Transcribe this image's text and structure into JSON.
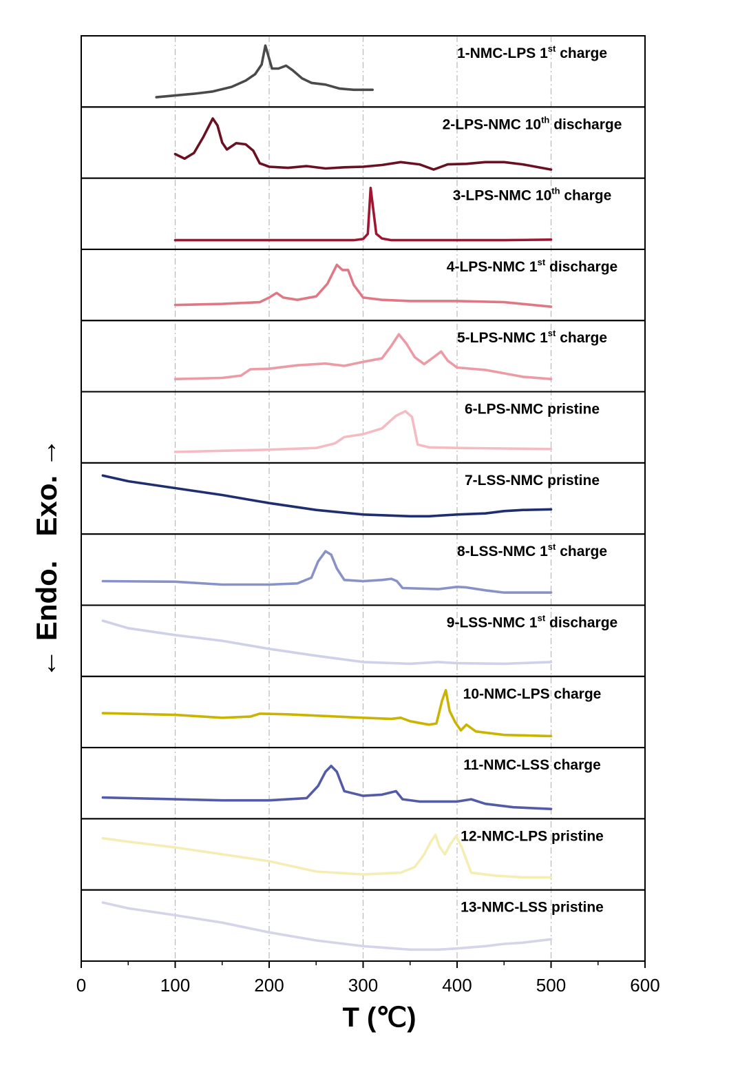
{
  "chart_data": {
    "type": "line",
    "title": "",
    "xlabel": "T (℃)",
    "ylabel": "← Endo.   Exo. →",
    "xlim": [
      0,
      600
    ],
    "xticks": [
      0,
      100,
      200,
      300,
      400,
      500,
      600
    ],
    "grid_x": [
      100,
      200,
      300,
      400,
      500
    ],
    "series": [
      {
        "name": "1-NMC-LPS 1st charge",
        "base": "1-NMC-LPS 1",
        "sup": "st",
        "suffix": " charge",
        "color": "#4a4a4a",
        "points": [
          [
            80,
            0.05
          ],
          [
            100,
            0.08
          ],
          [
            120,
            0.11
          ],
          [
            140,
            0.15
          ],
          [
            160,
            0.23
          ],
          [
            175,
            0.34
          ],
          [
            185,
            0.45
          ],
          [
            192,
            0.62
          ],
          [
            196,
            0.95
          ],
          [
            199,
            0.78
          ],
          [
            203,
            0.55
          ],
          [
            210,
            0.55
          ],
          [
            218,
            0.6
          ],
          [
            225,
            0.52
          ],
          [
            235,
            0.38
          ],
          [
            245,
            0.3
          ],
          [
            260,
            0.27
          ],
          [
            275,
            0.2
          ],
          [
            290,
            0.18
          ],
          [
            300,
            0.18
          ],
          [
            310,
            0.18
          ]
        ]
      },
      {
        "name": "2-LPS-NMC 10th discharge",
        "base": "2-LPS-NMC 10",
        "sup": "th",
        "suffix": " discharge",
        "color": "#6b1020",
        "points": [
          [
            100,
            0.3
          ],
          [
            110,
            0.22
          ],
          [
            120,
            0.32
          ],
          [
            130,
            0.6
          ],
          [
            140,
            0.92
          ],
          [
            145,
            0.8
          ],
          [
            150,
            0.5
          ],
          [
            155,
            0.38
          ],
          [
            165,
            0.49
          ],
          [
            175,
            0.47
          ],
          [
            183,
            0.36
          ],
          [
            190,
            0.14
          ],
          [
            200,
            0.08
          ],
          [
            220,
            0.06
          ],
          [
            240,
            0.09
          ],
          [
            260,
            0.05
          ],
          [
            280,
            0.07
          ],
          [
            300,
            0.08
          ],
          [
            320,
            0.11
          ],
          [
            340,
            0.16
          ],
          [
            360,
            0.12
          ],
          [
            375,
            0.03
          ],
          [
            390,
            0.12
          ],
          [
            410,
            0.13
          ],
          [
            430,
            0.16
          ],
          [
            450,
            0.16
          ],
          [
            470,
            0.12
          ],
          [
            490,
            0.06
          ],
          [
            500,
            0.03
          ]
        ]
      },
      {
        "name": "3-LPS-NMC 10th charge",
        "base": "3-LPS-NMC 10",
        "sup": "th",
        "suffix": " charge",
        "color": "#a01530",
        "points": [
          [
            100,
            0.04
          ],
          [
            150,
            0.04
          ],
          [
            200,
            0.04
          ],
          [
            250,
            0.04
          ],
          [
            290,
            0.04
          ],
          [
            300,
            0.06
          ],
          [
            305,
            0.15
          ],
          [
            308,
            0.95
          ],
          [
            311,
            0.55
          ],
          [
            314,
            0.15
          ],
          [
            320,
            0.07
          ],
          [
            330,
            0.04
          ],
          [
            400,
            0.04
          ],
          [
            450,
            0.04
          ],
          [
            500,
            0.05
          ]
        ]
      },
      {
        "name": "4-LPS-NMC 1st discharge",
        "base": "4-LPS-NMC 1",
        "sup": "st",
        "suffix": " discharge",
        "color": "#e07884",
        "points": [
          [
            100,
            0.15
          ],
          [
            150,
            0.17
          ],
          [
            190,
            0.2
          ],
          [
            200,
            0.28
          ],
          [
            208,
            0.36
          ],
          [
            215,
            0.28
          ],
          [
            230,
            0.24
          ],
          [
            250,
            0.3
          ],
          [
            262,
            0.52
          ],
          [
            272,
            0.85
          ],
          [
            278,
            0.76
          ],
          [
            284,
            0.76
          ],
          [
            290,
            0.5
          ],
          [
            300,
            0.28
          ],
          [
            320,
            0.24
          ],
          [
            350,
            0.22
          ],
          [
            400,
            0.22
          ],
          [
            450,
            0.2
          ],
          [
            500,
            0.12
          ]
        ]
      },
      {
        "name": "5-LPS-NMC 1st charge",
        "base": "5-LPS-NMC 1",
        "sup": "st",
        "suffix": " charge",
        "color": "#ec9aa4",
        "points": [
          [
            100,
            0.1
          ],
          [
            150,
            0.12
          ],
          [
            170,
            0.16
          ],
          [
            180,
            0.27
          ],
          [
            200,
            0.28
          ],
          [
            230,
            0.34
          ],
          [
            260,
            0.37
          ],
          [
            280,
            0.33
          ],
          [
            300,
            0.4
          ],
          [
            320,
            0.46
          ],
          [
            330,
            0.68
          ],
          [
            338,
            0.88
          ],
          [
            346,
            0.72
          ],
          [
            355,
            0.48
          ],
          [
            365,
            0.36
          ],
          [
            375,
            0.48
          ],
          [
            383,
            0.58
          ],
          [
            390,
            0.42
          ],
          [
            400,
            0.3
          ],
          [
            430,
            0.26
          ],
          [
            450,
            0.2
          ],
          [
            470,
            0.14
          ],
          [
            500,
            0.1
          ]
        ]
      },
      {
        "name": "6-LPS-NMC pristine",
        "base": "6-LPS-NMC pristine",
        "sup": "",
        "suffix": "",
        "color": "#f4bcc2",
        "points": [
          [
            100,
            0.07
          ],
          [
            150,
            0.09
          ],
          [
            200,
            0.11
          ],
          [
            250,
            0.14
          ],
          [
            270,
            0.22
          ],
          [
            280,
            0.33
          ],
          [
            300,
            0.38
          ],
          [
            320,
            0.48
          ],
          [
            335,
            0.7
          ],
          [
            345,
            0.78
          ],
          [
            352,
            0.68
          ],
          [
            358,
            0.2
          ],
          [
            370,
            0.15
          ],
          [
            400,
            0.14
          ],
          [
            450,
            0.13
          ],
          [
            500,
            0.12
          ]
        ]
      },
      {
        "name": "7-LSS-NMC pristine",
        "base": "7-LSS-NMC pristine",
        "sup": "",
        "suffix": "",
        "color": "#1f2e6e",
        "points": [
          [
            23,
            0.9
          ],
          [
            50,
            0.8
          ],
          [
            100,
            0.68
          ],
          [
            150,
            0.56
          ],
          [
            200,
            0.42
          ],
          [
            250,
            0.3
          ],
          [
            300,
            0.22
          ],
          [
            350,
            0.19
          ],
          [
            370,
            0.19
          ],
          [
            400,
            0.22
          ],
          [
            430,
            0.24
          ],
          [
            450,
            0.28
          ],
          [
            470,
            0.3
          ],
          [
            500,
            0.31
          ]
        ]
      },
      {
        "name": "8-LSS-NMC 1st charge",
        "base": "8-LSS-NMC 1",
        "sup": "st",
        "suffix": " charge",
        "color": "#8891c8",
        "points": [
          [
            23,
            0.3
          ],
          [
            100,
            0.29
          ],
          [
            150,
            0.24
          ],
          [
            200,
            0.24
          ],
          [
            230,
            0.26
          ],
          [
            245,
            0.36
          ],
          [
            252,
            0.64
          ],
          [
            260,
            0.82
          ],
          [
            266,
            0.76
          ],
          [
            272,
            0.52
          ],
          [
            280,
            0.32
          ],
          [
            300,
            0.3
          ],
          [
            320,
            0.32
          ],
          [
            330,
            0.34
          ],
          [
            336,
            0.3
          ],
          [
            342,
            0.18
          ],
          [
            380,
            0.16
          ],
          [
            400,
            0.2
          ],
          [
            410,
            0.19
          ],
          [
            430,
            0.14
          ],
          [
            450,
            0.1
          ],
          [
            500,
            0.1
          ]
        ]
      },
      {
        "name": "9-LSS-NMC 1st discharge",
        "base": "9-LSS-NMC 1",
        "sup": "st",
        "suffix": " discharge",
        "color": "#cfd0ea",
        "points": [
          [
            23,
            0.85
          ],
          [
            50,
            0.72
          ],
          [
            100,
            0.6
          ],
          [
            150,
            0.5
          ],
          [
            200,
            0.36
          ],
          [
            250,
            0.24
          ],
          [
            300,
            0.13
          ],
          [
            350,
            0.1
          ],
          [
            380,
            0.13
          ],
          [
            400,
            0.11
          ],
          [
            450,
            0.1
          ],
          [
            500,
            0.13
          ]
        ]
      },
      {
        "name": "10-NMC-LPS charge",
        "base": "10-NMC-LPS charge",
        "sup": "",
        "suffix": "",
        "color": "#c9b400",
        "points": [
          [
            23,
            0.48
          ],
          [
            100,
            0.45
          ],
          [
            150,
            0.4
          ],
          [
            180,
            0.42
          ],
          [
            190,
            0.47
          ],
          [
            220,
            0.46
          ],
          [
            260,
            0.43
          ],
          [
            300,
            0.4
          ],
          [
            330,
            0.38
          ],
          [
            340,
            0.4
          ],
          [
            350,
            0.34
          ],
          [
            370,
            0.28
          ],
          [
            378,
            0.3
          ],
          [
            384,
            0.7
          ],
          [
            388,
            0.88
          ],
          [
            392,
            0.52
          ],
          [
            398,
            0.32
          ],
          [
            404,
            0.18
          ],
          [
            410,
            0.28
          ],
          [
            420,
            0.16
          ],
          [
            450,
            0.1
          ],
          [
            500,
            0.08
          ]
        ]
      },
      {
        "name": "11-NMC-LSS charge",
        "base": "11-NMC-LSS charge",
        "sup": "",
        "suffix": "",
        "color": "#535ba8",
        "points": [
          [
            23,
            0.25
          ],
          [
            100,
            0.22
          ],
          [
            150,
            0.2
          ],
          [
            200,
            0.2
          ],
          [
            240,
            0.24
          ],
          [
            252,
            0.45
          ],
          [
            260,
            0.7
          ],
          [
            266,
            0.8
          ],
          [
            272,
            0.7
          ],
          [
            280,
            0.36
          ],
          [
            300,
            0.28
          ],
          [
            320,
            0.3
          ],
          [
            335,
            0.36
          ],
          [
            342,
            0.22
          ],
          [
            360,
            0.18
          ],
          [
            400,
            0.18
          ],
          [
            415,
            0.22
          ],
          [
            430,
            0.14
          ],
          [
            460,
            0.08
          ],
          [
            500,
            0.05
          ]
        ]
      },
      {
        "name": "12-NMC-LPS pristine",
        "base": "12-NMC-LPS pristine",
        "sup": "",
        "suffix": "",
        "color": "#f6edb5",
        "points": [
          [
            23,
            0.78
          ],
          [
            50,
            0.72
          ],
          [
            100,
            0.62
          ],
          [
            150,
            0.5
          ],
          [
            200,
            0.38
          ],
          [
            250,
            0.2
          ],
          [
            300,
            0.15
          ],
          [
            340,
            0.18
          ],
          [
            355,
            0.28
          ],
          [
            365,
            0.5
          ],
          [
            372,
            0.72
          ],
          [
            377,
            0.84
          ],
          [
            381,
            0.64
          ],
          [
            387,
            0.5
          ],
          [
            393,
            0.68
          ],
          [
            399,
            0.82
          ],
          [
            405,
            0.62
          ],
          [
            415,
            0.18
          ],
          [
            440,
            0.13
          ],
          [
            470,
            0.1
          ],
          [
            500,
            0.1
          ]
        ]
      },
      {
        "name": "13-NMC-LSS pristine",
        "base": "13-NMC-LSS pristine",
        "sup": "",
        "suffix": "",
        "color": "#d4d4ea",
        "points": [
          [
            23,
            0.9
          ],
          [
            50,
            0.8
          ],
          [
            100,
            0.68
          ],
          [
            150,
            0.55
          ],
          [
            200,
            0.38
          ],
          [
            250,
            0.24
          ],
          [
            300,
            0.14
          ],
          [
            350,
            0.08
          ],
          [
            380,
            0.08
          ],
          [
            400,
            0.1
          ],
          [
            430,
            0.14
          ],
          [
            450,
            0.18
          ],
          [
            470,
            0.2
          ],
          [
            500,
            0.26
          ]
        ]
      }
    ]
  }
}
